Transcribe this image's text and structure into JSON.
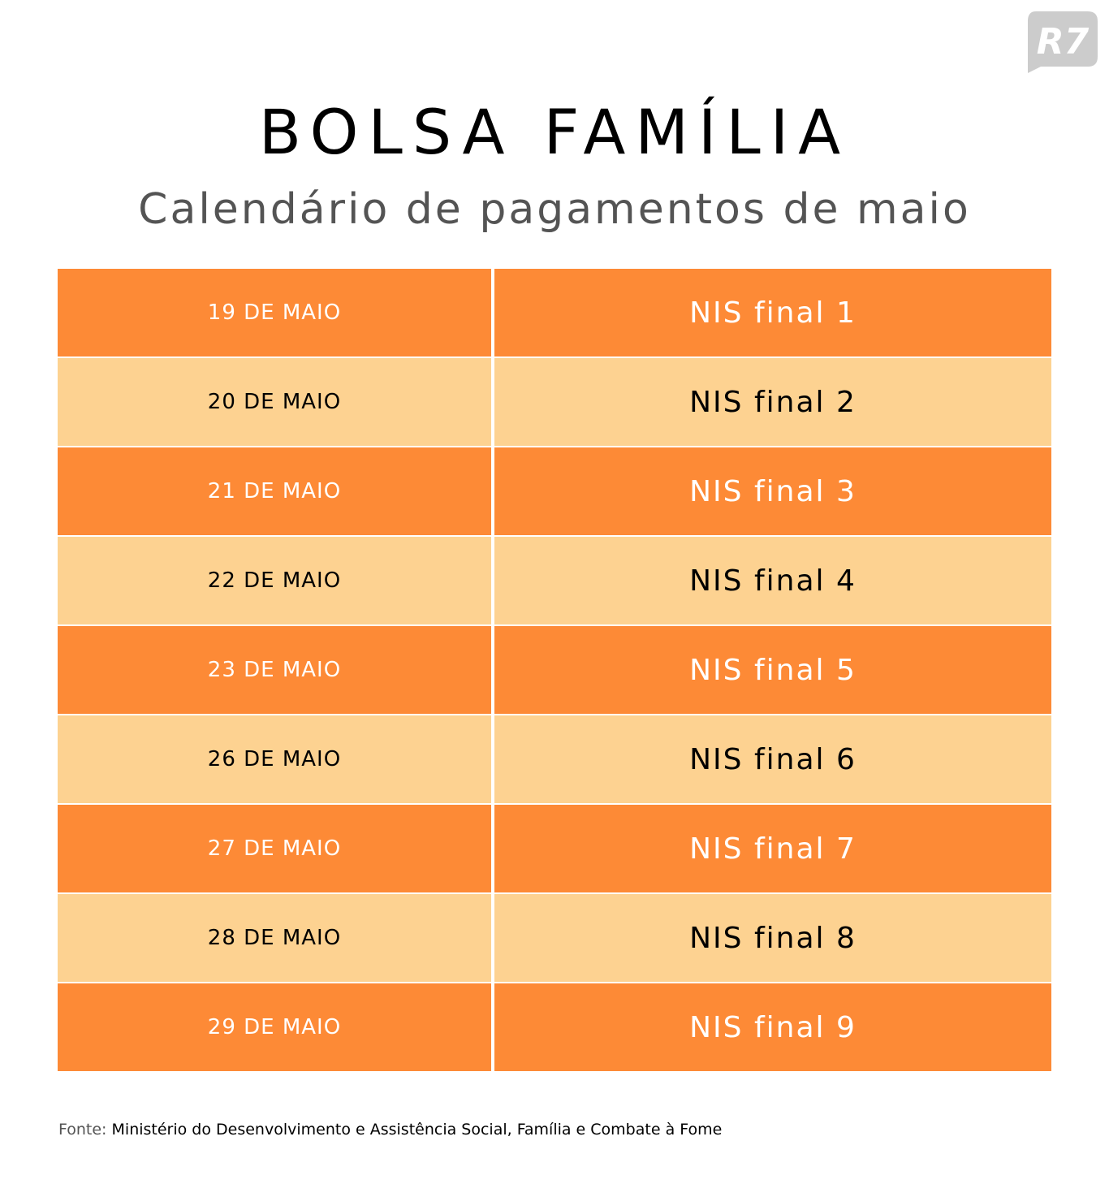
{
  "logo": {
    "text": "R7",
    "color": "#cccccc"
  },
  "title": "BOLSA FAMÍLIA",
  "subtitle": "Calendário de pagamentos de maio",
  "colors": {
    "dark_row": "#fd8a36",
    "light_row": "#fdd291"
  },
  "rows": [
    {
      "date": "19 DE MAIO",
      "nis": "NIS final 1"
    },
    {
      "date": "20 DE MAIO",
      "nis": "NIS final 2"
    },
    {
      "date": "21 DE MAIO",
      "nis": "NIS final 3"
    },
    {
      "date": "22 DE MAIO",
      "nis": "NIS final 4"
    },
    {
      "date": "23 DE MAIO",
      "nis": "NIS final 5"
    },
    {
      "date": "26 DE MAIO",
      "nis": "NIS final 6"
    },
    {
      "date": "27 DE MAIO",
      "nis": "NIS final 7"
    },
    {
      "date": "28 DE MAIO",
      "nis": "NIS final 8"
    },
    {
      "date": "29 DE MAIO",
      "nis": "NIS final 9"
    }
  ],
  "footer": {
    "label": "Fonte:",
    "text": "Ministério do Desenvolvimento e Assistência Social, Família e Combate à Fome"
  }
}
